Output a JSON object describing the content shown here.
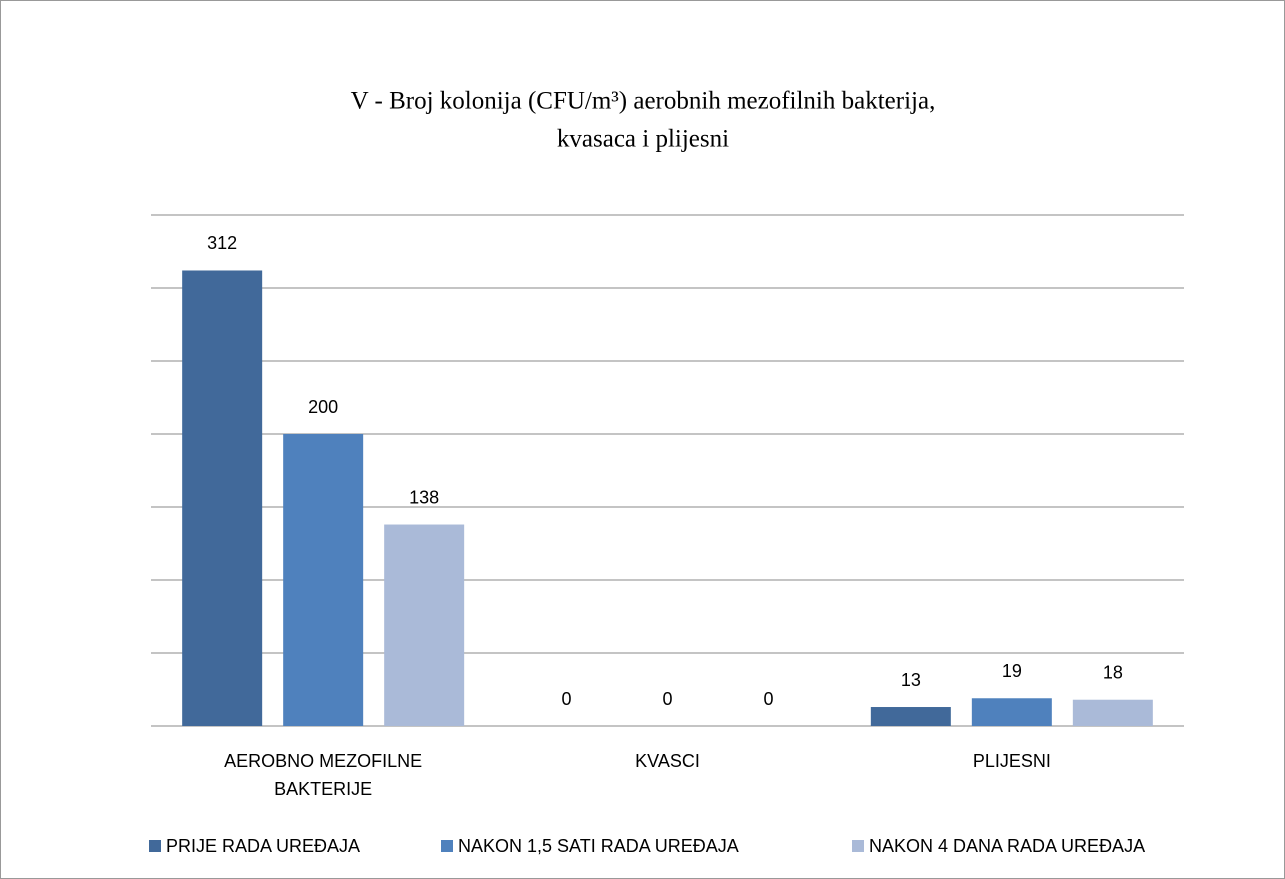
{
  "chart_data": {
    "type": "bar",
    "title": [
      "V - Broj kolonija (CFU/m³) aerobnih mezofilnih bakterija,",
      "kvasaca i plijesni"
    ],
    "categories": [
      "AEROBNO MEZOFILNE BAKTERIJE",
      "KVASCI",
      "PLIJESNI"
    ],
    "series": [
      {
        "name": "PRIJE RADA UREĐAJA",
        "color": "#41699a",
        "values": [
          312,
          0,
          13
        ]
      },
      {
        "name": "NAKON 1,5 SATI RADA UREĐAJA",
        "color": "#4f81bd",
        "values": [
          200,
          0,
          19
        ]
      },
      {
        "name": "NAKON 4 DANA RADA UREĐAJA",
        "color": "#aabad8",
        "values": [
          138,
          0,
          18
        ]
      }
    ],
    "ylim": [
      0,
      350
    ],
    "yticks": [
      0,
      50,
      100,
      150,
      200,
      250,
      300,
      350
    ],
    "grid": true,
    "legend": "bottom"
  }
}
